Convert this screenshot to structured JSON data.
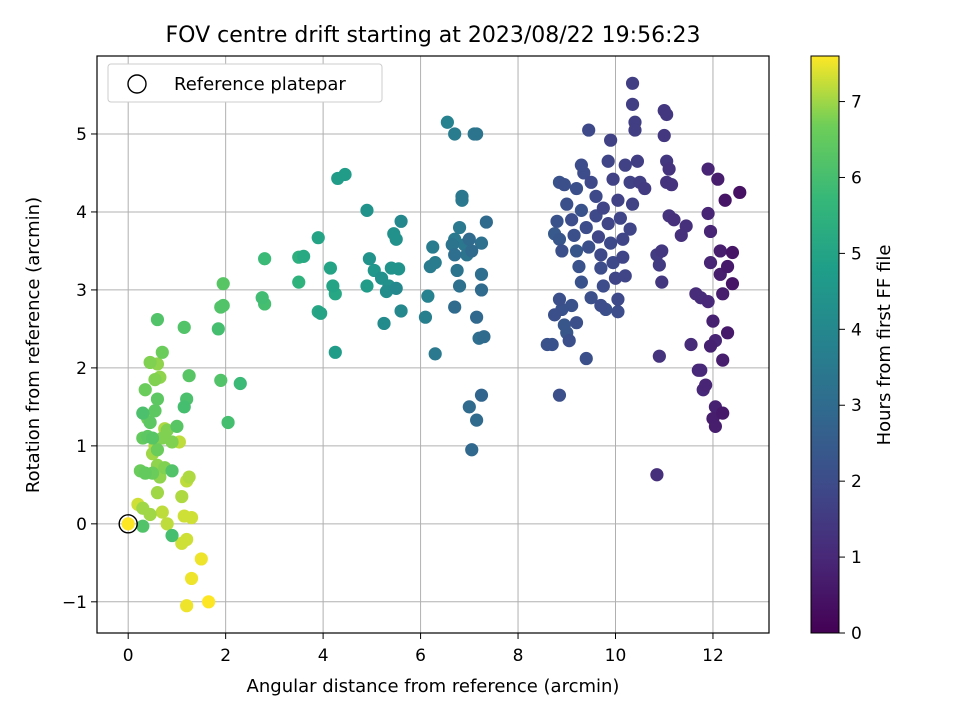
{
  "chart_data": {
    "type": "scatter",
    "title": "FOV centre drift starting at 2023/08/22 19:56:23",
    "xlabel": "Angular distance from reference (arcmin)",
    "ylabel": "Rotation from reference (arcmin)",
    "xlim": [
      -0.64,
      13.15
    ],
    "ylim": [
      -1.4,
      6.0
    ],
    "xticks": [
      0,
      2,
      4,
      6,
      8,
      10,
      12
    ],
    "yticks": [
      -1,
      0,
      1,
      2,
      3,
      4,
      5
    ],
    "grid": true,
    "legend": {
      "placement": "top-left",
      "entries": [
        "Reference platepar"
      ]
    },
    "colorbar": {
      "label": "Hours from first FF file",
      "min": 0,
      "max": 7.6,
      "ticks": [
        0,
        1,
        2,
        3,
        4,
        5,
        6,
        7
      ],
      "colormap": "viridis"
    },
    "reference_point": {
      "x": 0,
      "y": 0,
      "marker": "open-circle"
    },
    "points": [
      [
        0.0,
        0.0,
        7.6
      ],
      [
        0.2,
        0.25,
        7.3
      ],
      [
        0.3,
        0.2,
        7.0
      ],
      [
        0.45,
        0.12,
        7.0
      ],
      [
        0.6,
        0.4,
        7.0
      ],
      [
        0.7,
        0.15,
        7.2
      ],
      [
        0.3,
        -0.03,
        6.2
      ],
      [
        0.8,
        0.0,
        7.2
      ],
      [
        0.9,
        -0.15,
        6.0
      ],
      [
        1.15,
        0.1,
        7.3
      ],
      [
        1.3,
        0.08,
        7.3
      ],
      [
        1.1,
        0.35,
        7.1
      ],
      [
        1.2,
        0.55,
        7.2
      ],
      [
        1.25,
        0.6,
        7.1
      ],
      [
        1.2,
        -0.2,
        7.3
      ],
      [
        1.1,
        -0.25,
        7.3
      ],
      [
        1.5,
        -0.45,
        7.5
      ],
      [
        1.3,
        -0.7,
        7.5
      ],
      [
        1.2,
        -1.05,
        7.5
      ],
      [
        1.65,
        -1.0,
        7.6
      ],
      [
        0.25,
        0.68,
        6.6
      ],
      [
        0.35,
        0.65,
        6.5
      ],
      [
        0.5,
        0.65,
        6.6
      ],
      [
        0.6,
        0.75,
        6.9
      ],
      [
        0.75,
        0.72,
        6.8
      ],
      [
        0.9,
        0.68,
        6.2
      ],
      [
        0.65,
        0.6,
        6.9
      ],
      [
        0.3,
        1.1,
        6.5
      ],
      [
        0.4,
        1.12,
        6.4
      ],
      [
        0.5,
        1.1,
        6.3
      ],
      [
        0.55,
        1.0,
        7.1
      ],
      [
        0.6,
        0.95,
        6.6
      ],
      [
        0.5,
        0.9,
        7.0
      ],
      [
        0.7,
        1.1,
        6.8
      ],
      [
        0.8,
        1.2,
        6.8
      ],
      [
        0.9,
        1.05,
        6.8
      ],
      [
        1.05,
        1.05,
        7.2
      ],
      [
        1.0,
        1.25,
        6.3
      ],
      [
        0.75,
        1.22,
        7.1
      ],
      [
        0.3,
        1.42,
        6.1
      ],
      [
        0.4,
        1.35,
        6.7
      ],
      [
        0.45,
        1.3,
        6.4
      ],
      [
        0.55,
        1.45,
        6.4
      ],
      [
        0.35,
        1.72,
        6.6
      ],
      [
        0.6,
        1.6,
        6.4
      ],
      [
        0.55,
        1.85,
        6.8
      ],
      [
        0.65,
        1.88,
        6.9
      ],
      [
        0.45,
        2.07,
        6.8
      ],
      [
        0.6,
        2.05,
        6.9
      ],
      [
        0.7,
        2.2,
        6.6
      ],
      [
        0.6,
        2.62,
        6.2
      ],
      [
        1.15,
        1.5,
        6.0
      ],
      [
        1.2,
        1.6,
        6.1
      ],
      [
        1.25,
        1.9,
        6.3
      ],
      [
        1.15,
        2.52,
        6.2
      ],
      [
        1.9,
        1.84,
        6.2
      ],
      [
        2.05,
        1.3,
        6.0
      ],
      [
        2.3,
        1.8,
        5.8
      ],
      [
        1.85,
        2.5,
        6.0
      ],
      [
        1.9,
        2.78,
        6.2
      ],
      [
        1.95,
        2.8,
        6.2
      ],
      [
        1.95,
        3.08,
        6.3
      ],
      [
        2.75,
        2.9,
        5.9
      ],
      [
        2.8,
        2.82,
        6.0
      ],
      [
        2.8,
        3.4,
        5.8
      ],
      [
        3.5,
        3.1,
        5.5
      ],
      [
        3.5,
        3.42,
        5.4
      ],
      [
        3.6,
        3.43,
        5.2
      ],
      [
        3.9,
        2.72,
        5.1
      ],
      [
        3.95,
        2.7,
        5.0
      ],
      [
        3.9,
        3.67,
        5.0
      ],
      [
        4.15,
        3.28,
        5.0
      ],
      [
        4.2,
        3.05,
        5.0
      ],
      [
        4.25,
        2.95,
        5.1
      ],
      [
        4.25,
        2.2,
        4.7
      ],
      [
        4.3,
        4.43,
        4.7
      ],
      [
        4.45,
        4.48,
        4.7
      ],
      [
        4.9,
        4.02,
        4.4
      ],
      [
        4.9,
        3.05,
        4.7
      ],
      [
        4.95,
        3.4,
        4.4
      ],
      [
        5.05,
        3.25,
        4.5
      ],
      [
        5.2,
        3.15,
        4.3
      ],
      [
        5.25,
        2.57,
        4.1
      ],
      [
        5.3,
        2.98,
        4.2
      ],
      [
        5.35,
        3.05,
        4.3
      ],
      [
        5.4,
        3.28,
        4.4
      ],
      [
        5.45,
        3.72,
        4.3
      ],
      [
        5.5,
        3.02,
        4.0
      ],
      [
        5.55,
        3.27,
        4.4
      ],
      [
        5.5,
        3.65,
        4.3
      ],
      [
        5.6,
        3.88,
        4.0
      ],
      [
        5.6,
        2.73,
        4.0
      ],
      [
        6.1,
        2.65,
        3.7
      ],
      [
        6.15,
        2.92,
        3.8
      ],
      [
        6.2,
        3.3,
        3.6
      ],
      [
        6.3,
        3.35,
        3.6
      ],
      [
        6.25,
        3.55,
        3.6
      ],
      [
        6.3,
        2.18,
        3.5
      ],
      [
        6.55,
        5.15,
        3.8
      ],
      [
        6.7,
        5.0,
        3.6
      ],
      [
        6.65,
        3.58,
        3.3
      ],
      [
        6.7,
        3.65,
        3.5
      ],
      [
        6.7,
        3.45,
        3.1
      ],
      [
        6.75,
        3.25,
        3.3
      ],
      [
        6.8,
        3.05,
        3.2
      ],
      [
        6.7,
        2.78,
        3.0
      ],
      [
        6.8,
        3.8,
        3.5
      ],
      [
        6.85,
        4.15,
        3.5
      ],
      [
        6.85,
        4.2,
        3.4
      ],
      [
        6.9,
        3.58,
        3.4
      ],
      [
        6.95,
        3.45,
        3.3
      ],
      [
        7.0,
        3.65,
        3.0
      ],
      [
        7.05,
        3.5,
        3.0
      ],
      [
        7.0,
        1.5,
        3.0
      ],
      [
        7.05,
        0.95,
        2.9
      ],
      [
        7.1,
        5.0,
        3.4
      ],
      [
        7.15,
        5.0,
        3.3
      ],
      [
        7.15,
        1.33,
        3.0
      ],
      [
        7.15,
        2.65,
        2.9
      ],
      [
        7.2,
        2.38,
        3.1
      ],
      [
        7.25,
        3.6,
        3.2
      ],
      [
        7.25,
        3.2,
        3.1
      ],
      [
        7.25,
        3.0,
        3.0
      ],
      [
        7.25,
        1.65,
        2.8
      ],
      [
        7.3,
        2.4,
        3.0
      ],
      [
        7.35,
        3.87,
        3.0
      ],
      [
        8.6,
        2.3,
        2.2
      ],
      [
        8.7,
        2.3,
        2.2
      ],
      [
        8.75,
        2.68,
        2.1
      ],
      [
        8.85,
        1.65,
        2.1
      ],
      [
        8.75,
        3.72,
        2.4
      ],
      [
        8.8,
        3.88,
        2.2
      ],
      [
        8.85,
        3.65,
        2.3
      ],
      [
        8.9,
        3.5,
        2.1
      ],
      [
        8.85,
        2.88,
        2.1
      ],
      [
        8.9,
        2.75,
        2.2
      ],
      [
        8.95,
        2.55,
        2.3
      ],
      [
        9.0,
        2.45,
        2.3
      ],
      [
        9.05,
        2.35,
        2.1
      ],
      [
        9.1,
        2.8,
        2.2
      ],
      [
        8.85,
        4.38,
        2.2
      ],
      [
        8.95,
        4.35,
        2.1
      ],
      [
        9.0,
        4.1,
        2.1
      ],
      [
        9.1,
        3.9,
        2.0
      ],
      [
        9.2,
        4.3,
        2.1
      ],
      [
        9.15,
        3.7,
        2.1
      ],
      [
        9.2,
        3.5,
        2.3
      ],
      [
        9.25,
        3.3,
        2.2
      ],
      [
        9.3,
        3.1,
        2.2
      ],
      [
        9.2,
        2.58,
        2.1
      ],
      [
        9.3,
        4.02,
        2.2
      ],
      [
        9.35,
        4.5,
        2.0
      ],
      [
        9.3,
        4.6,
        2.0
      ],
      [
        9.4,
        3.8,
        2.0
      ],
      [
        9.45,
        3.55,
        2.1
      ],
      [
        9.5,
        2.9,
        2.1
      ],
      [
        9.4,
        2.12,
        2.1
      ],
      [
        9.45,
        5.05,
        1.9
      ],
      [
        9.5,
        4.38,
        1.9
      ],
      [
        9.6,
        4.2,
        1.9
      ],
      [
        9.6,
        3.95,
        1.9
      ],
      [
        9.65,
        3.68,
        1.8
      ],
      [
        9.7,
        3.45,
        1.9
      ],
      [
        9.7,
        3.28,
        2.0
      ],
      [
        9.75,
        3.05,
        2.0
      ],
      [
        9.7,
        2.8,
        2.0
      ],
      [
        9.8,
        2.75,
        2.1
      ],
      [
        9.75,
        4.05,
        1.8
      ],
      [
        9.85,
        3.85,
        1.8
      ],
      [
        9.9,
        3.6,
        1.9
      ],
      [
        9.95,
        3.35,
        1.9
      ],
      [
        10.0,
        3.15,
        1.8
      ],
      [
        10.05,
        2.88,
        1.9
      ],
      [
        10.05,
        2.72,
        2.0
      ],
      [
        9.85,
        4.65,
        1.8
      ],
      [
        9.9,
        4.92,
        1.7
      ],
      [
        9.95,
        4.42,
        1.7
      ],
      [
        10.05,
        4.15,
        1.7
      ],
      [
        10.1,
        3.92,
        1.8
      ],
      [
        10.15,
        3.65,
        1.8
      ],
      [
        10.15,
        3.42,
        1.8
      ],
      [
        10.2,
        3.18,
        1.8
      ],
      [
        10.2,
        4.6,
        1.7
      ],
      [
        10.3,
        4.38,
        1.7
      ],
      [
        10.35,
        4.1,
        1.7
      ],
      [
        10.3,
        3.78,
        1.8
      ],
      [
        10.35,
        5.65,
        1.6
      ],
      [
        10.35,
        5.38,
        1.6
      ],
      [
        10.4,
        5.15,
        1.6
      ],
      [
        10.4,
        5.05,
        1.6
      ],
      [
        10.45,
        4.65,
        1.6
      ],
      [
        10.5,
        4.38,
        1.6
      ],
      [
        10.6,
        4.3,
        1.5
      ],
      [
        10.85,
        3.45,
        1.5
      ],
      [
        10.9,
        3.32,
        1.5
      ],
      [
        10.95,
        3.5,
        1.4
      ],
      [
        10.95,
        3.1,
        1.4
      ],
      [
        10.9,
        2.15,
        1.3
      ],
      [
        10.85,
        0.63,
        1.2
      ],
      [
        11.0,
        5.3,
        1.4
      ],
      [
        11.05,
        5.25,
        1.4
      ],
      [
        11.0,
        4.98,
        1.4
      ],
      [
        11.05,
        4.65,
        1.4
      ],
      [
        11.1,
        4.55,
        1.3
      ],
      [
        11.05,
        4.38,
        1.3
      ],
      [
        11.15,
        4.35,
        1.3
      ],
      [
        11.1,
        3.95,
        1.3
      ],
      [
        11.2,
        3.9,
        1.2
      ],
      [
        11.35,
        3.7,
        1.2
      ],
      [
        11.45,
        3.82,
        1.2
      ],
      [
        11.55,
        2.3,
        1.1
      ],
      [
        11.65,
        2.95,
        1.1
      ],
      [
        11.75,
        2.9,
        1.1
      ],
      [
        11.7,
        1.97,
        1.0
      ],
      [
        11.75,
        1.97,
        1.0
      ],
      [
        11.8,
        1.72,
        1.0
      ],
      [
        11.85,
        1.78,
        0.9
      ],
      [
        11.9,
        4.55,
        0.9
      ],
      [
        11.9,
        3.98,
        0.9
      ],
      [
        11.95,
        3.75,
        0.9
      ],
      [
        11.95,
        3.35,
        0.9
      ],
      [
        11.9,
        2.85,
        1.0
      ],
      [
        12.0,
        2.6,
        0.8
      ],
      [
        11.95,
        2.28,
        0.8
      ],
      [
        12.05,
        2.35,
        0.9
      ],
      [
        12.0,
        1.35,
        0.7
      ],
      [
        12.05,
        1.25,
        0.7
      ],
      [
        12.05,
        1.5,
        0.8
      ],
      [
        12.1,
        4.42,
        0.7
      ],
      [
        12.15,
        3.5,
        0.7
      ],
      [
        12.15,
        3.2,
        0.7
      ],
      [
        12.2,
        2.95,
        0.7
      ],
      [
        12.2,
        2.1,
        0.7
      ],
      [
        12.2,
        1.42,
        0.6
      ],
      [
        12.25,
        4.15,
        0.5
      ],
      [
        12.3,
        3.3,
        0.6
      ],
      [
        12.3,
        2.45,
        0.6
      ],
      [
        12.4,
        3.48,
        0.5
      ],
      [
        12.4,
        3.08,
        0.5
      ],
      [
        12.55,
        4.25,
        0.4
      ]
    ]
  }
}
